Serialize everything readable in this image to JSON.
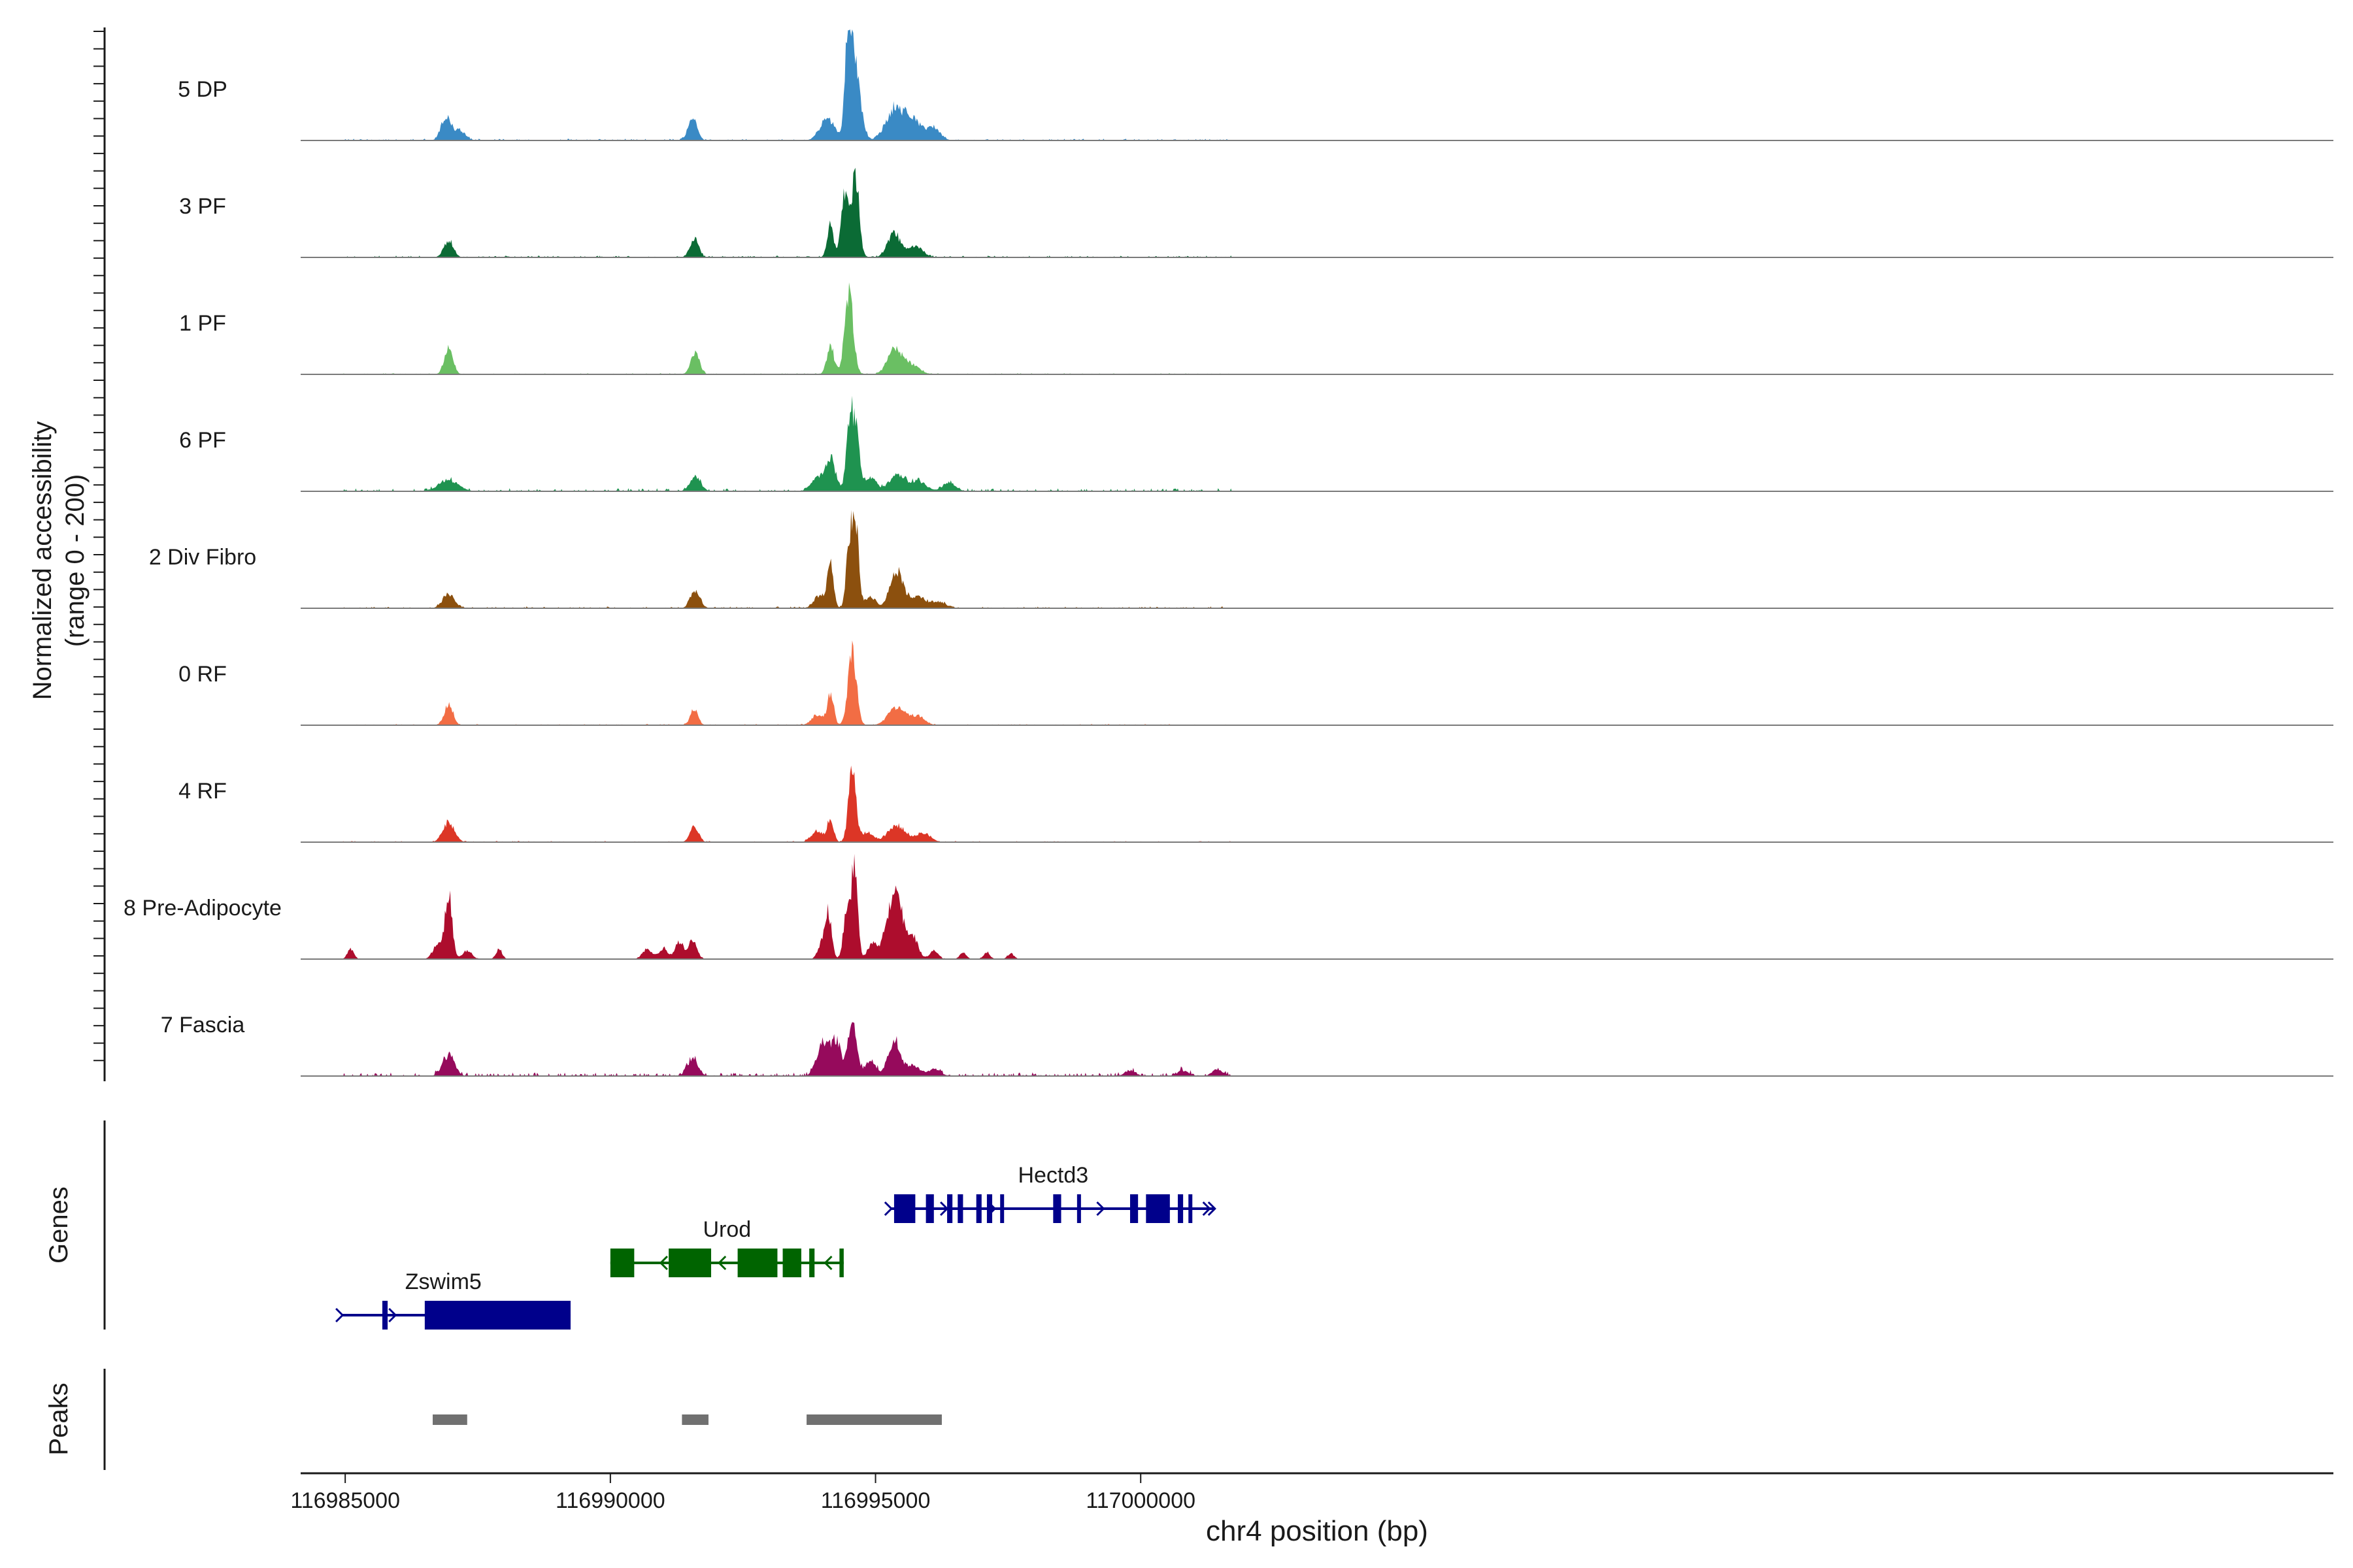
{
  "chart_data": {
    "type": "area",
    "title": "",
    "xlabel": "chr4 position (bp)",
    "ylabel": "Normalized accessibility",
    "ylabel_sub": "(range 0 - 200)",
    "genes_label": "Genes",
    "peaks_label": "Peaks",
    "xlim": [
      116984160,
      117022490
    ],
    "ylim": [
      0,
      200
    ],
    "x_ticks": [
      116985000,
      116990000,
      116995000,
      117000000
    ],
    "x_tick_labels": [
      "116985000",
      "116990000",
      "116995000",
      "117000000"
    ],
    "tracks": [
      {
        "name": "5 DP",
        "color": "#3a8ac5",
        "peaks": [
          [
            116986900,
            40,
            90
          ],
          [
            116987150,
            18,
            110
          ],
          [
            116991550,
            40,
            85
          ],
          [
            116994100,
            38,
            140
          ],
          [
            116994450,
            118,
            45
          ],
          [
            116994560,
            175,
            70
          ],
          [
            116994700,
            60,
            80
          ],
          [
            116995350,
            55,
            160
          ],
          [
            116995700,
            38,
            160
          ],
          [
            116996100,
            22,
            120
          ]
        ],
        "noise": [
          116984200,
          117001700,
          3
        ]
      },
      {
        "name": "3 PF",
        "color": "#0b6b35",
        "peaks": [
          [
            116986950,
            30,
            90
          ],
          [
            116991580,
            35,
            80
          ],
          [
            116994150,
            58,
            60
          ],
          [
            116994420,
            110,
            70
          ],
          [
            116994620,
            150,
            70
          ],
          [
            116995350,
            42,
            120
          ],
          [
            116995750,
            20,
            140
          ]
        ],
        "noise": [
          116984200,
          117001700,
          3
        ]
      },
      {
        "name": "1 PF",
        "color": "#6abf63",
        "peaks": [
          [
            116986950,
            48,
            80
          ],
          [
            116991600,
            40,
            80
          ],
          [
            116994150,
            50,
            70
          ],
          [
            116994500,
            148,
            80
          ],
          [
            116995350,
            42,
            130
          ],
          [
            116995650,
            18,
            160
          ]
        ],
        "noise": [
          116984200,
          117001700,
          2
        ]
      },
      {
        "name": "6 PF",
        "color": "#1f9350",
        "peaks": [
          [
            116986950,
            20,
            180
          ],
          [
            116991600,
            28,
            100
          ],
          [
            116993900,
            22,
            120
          ],
          [
            116994150,
            60,
            90
          ],
          [
            116994500,
            100,
            60
          ],
          [
            116994620,
            118,
            70
          ],
          [
            116994900,
            25,
            110
          ],
          [
            116995400,
            30,
            140
          ],
          [
            116995800,
            18,
            150
          ],
          [
            116996400,
            14,
            120
          ]
        ],
        "noise": [
          116984200,
          117001700,
          5
        ]
      },
      {
        "name": "2 Div Fibro",
        "color": "#8c500e",
        "peaks": [
          [
            116986950,
            25,
            110
          ],
          [
            116991600,
            32,
            90
          ],
          [
            116993950,
            22,
            110
          ],
          [
            116994150,
            75,
            60
          ],
          [
            116994500,
            110,
            55
          ],
          [
            116994620,
            160,
            60
          ],
          [
            116994900,
            20,
            110
          ],
          [
            116995400,
            68,
            120
          ],
          [
            116995800,
            22,
            140
          ],
          [
            116996200,
            12,
            120
          ]
        ],
        "noise": [
          116984200,
          117001700,
          3
        ]
      },
      {
        "name": "0 RF",
        "color": "#f26d44",
        "peaks": [
          [
            116986950,
            38,
            80
          ],
          [
            116991580,
            30,
            70
          ],
          [
            116993900,
            18,
            110
          ],
          [
            116994150,
            58,
            60
          ],
          [
            116994560,
            128,
            80
          ],
          [
            116995400,
            32,
            160
          ],
          [
            116995800,
            15,
            130
          ]
        ],
        "noise": [
          116984200,
          117001700,
          2
        ]
      },
      {
        "name": "4 RF",
        "color": "#dc3626",
        "peaks": [
          [
            116986950,
            35,
            110
          ],
          [
            116991580,
            28,
            80
          ],
          [
            116993900,
            20,
            110
          ],
          [
            116994150,
            42,
            60
          ],
          [
            116994560,
            128,
            70
          ],
          [
            116994850,
            18,
            110
          ],
          [
            116995400,
            30,
            160
          ],
          [
            116995900,
            15,
            140
          ]
        ],
        "noise": [
          116984200,
          117001700,
          2
        ]
      },
      {
        "name": "8 Pre-Adipocyte",
        "color": "#ad0d2d",
        "peaks": [
          [
            116985100,
            18,
            60
          ],
          [
            116986750,
            28,
            90
          ],
          [
            116986950,
            118,
            65
          ],
          [
            116987300,
            15,
            90
          ],
          [
            116987900,
            18,
            60
          ],
          [
            116990700,
            18,
            90
          ],
          [
            116991000,
            20,
            80
          ],
          [
            116991300,
            30,
            80
          ],
          [
            116991550,
            32,
            80
          ],
          [
            116993950,
            20,
            60
          ],
          [
            116994100,
            90,
            65
          ],
          [
            116994450,
            80,
            60
          ],
          [
            116994600,
            165,
            60
          ],
          [
            116994950,
            30,
            90
          ],
          [
            116995200,
            45,
            80
          ],
          [
            116995400,
            120,
            110
          ],
          [
            116995700,
            40,
            100
          ],
          [
            116996100,
            15,
            80
          ],
          [
            116996650,
            12,
            60
          ],
          [
            116997100,
            12,
            60
          ],
          [
            116997550,
            10,
            60
          ]
        ],
        "noise": [
          116984200,
          116998000,
          1
        ]
      },
      {
        "name": "7 Fascia",
        "color": "#960a5c",
        "peaks": [
          [
            116986950,
            38,
            110
          ],
          [
            116991550,
            30,
            100
          ],
          [
            116994000,
            55,
            110
          ],
          [
            116994250,
            62,
            100
          ],
          [
            116994560,
            100,
            80
          ],
          [
            116994900,
            25,
            110
          ],
          [
            116995350,
            65,
            110
          ],
          [
            116995700,
            20,
            120
          ],
          [
            116996100,
            12,
            120
          ],
          [
            116999800,
            10,
            100
          ],
          [
            117000800,
            10,
            100
          ],
          [
            117001450,
            12,
            100
          ]
        ],
        "noise": [
          116984200,
          117001700,
          6
        ]
      }
    ],
    "genes": [
      {
        "name": "Zswim5",
        "color": "#00008b",
        "strand": "+",
        "row": 3,
        "start": 116984950,
        "end": 116989250,
        "label_x": 116986850,
        "exons": [
          [
            116985700,
            116985800
          ],
          [
            116986500,
            116989250
          ]
        ],
        "arrows": [
          116984950,
          116985950
        ]
      },
      {
        "name": "Urod",
        "color": "#006400",
        "strand": "-",
        "row": 2,
        "start": 116990000,
        "end": 116994400,
        "label_x": 116992200,
        "exons": [
          [
            116990000,
            116990450
          ],
          [
            116991100,
            116991900
          ],
          [
            116992400,
            116993150
          ],
          [
            116993250,
            116993600
          ],
          [
            116993750,
            116993850
          ],
          [
            116994320,
            116994400
          ]
        ],
        "arrows": [
          116990950,
          116992050,
          116994050
        ]
      },
      {
        "name": "Hectd3",
        "color": "#00008b",
        "strand": "+",
        "row": 1,
        "start": 116995300,
        "end": 117001400,
        "label_x": 116998350,
        "exons": [
          [
            116995350,
            116995750
          ],
          [
            116995950,
            116996100
          ],
          [
            116996350,
            116996450
          ],
          [
            116996550,
            116996650
          ],
          [
            116996900,
            116997000
          ],
          [
            116997100,
            116997200
          ],
          [
            116997350,
            116997400
          ],
          [
            116998350,
            116998500
          ],
          [
            116998800,
            116998850
          ],
          [
            116999800,
            116999950
          ],
          [
            117000100,
            117000550
          ],
          [
            117000700,
            117000800
          ],
          [
            117000900,
            117000950
          ]
        ],
        "arrows": [
          116995300,
          116996350,
          116997250,
          116999300,
          117000550,
          117001300,
          117001400
        ]
      }
    ],
    "peak_regions": [
      [
        116986650,
        116987300
      ],
      [
        116991350,
        116991850
      ],
      [
        116993700,
        116996250
      ]
    ]
  }
}
